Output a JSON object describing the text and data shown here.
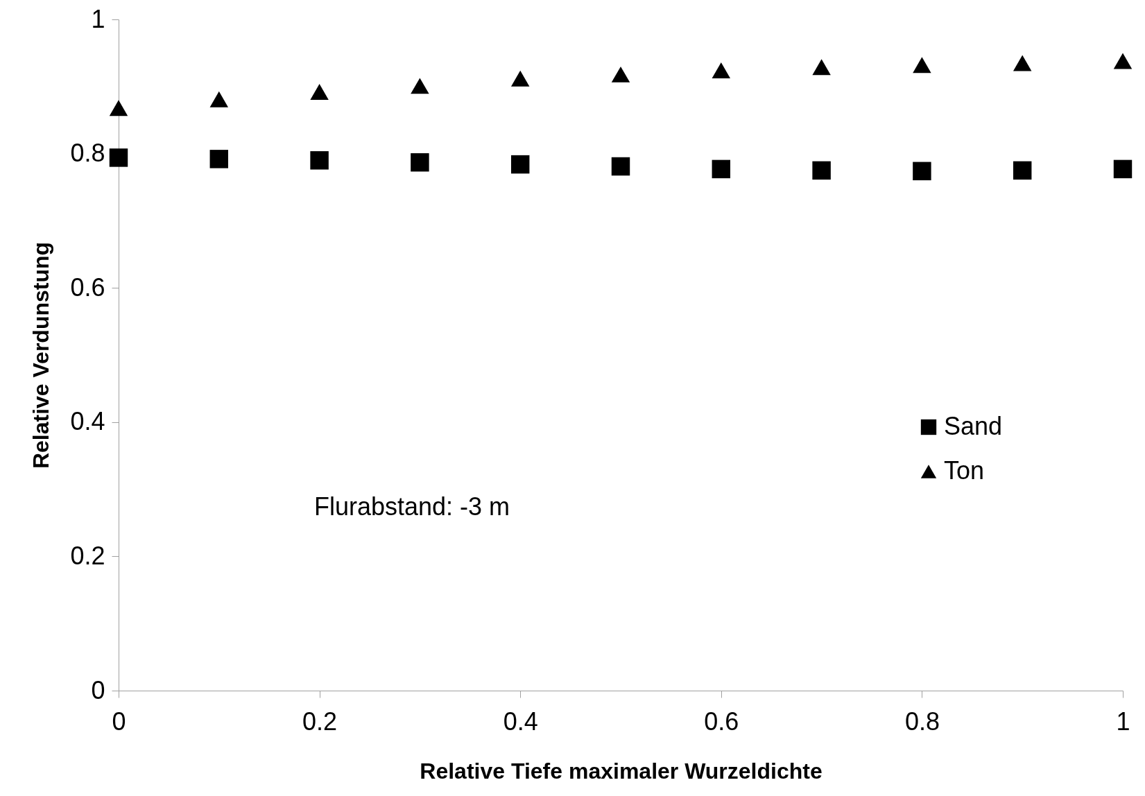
{
  "chart_data": {
    "type": "scatter",
    "xlabel": "Relative Tiefe maximaler Wurzeldichte",
    "ylabel": "Relative Verdunstung",
    "x": [
      0,
      0.1,
      0.2,
      0.3,
      0.4,
      0.5,
      0.6,
      0.7,
      0.8,
      0.9,
      1
    ],
    "series": [
      {
        "name": "Sand",
        "color": "#000000",
        "marker": "square",
        "values": [
          0.794,
          0.792,
          0.79,
          0.787,
          0.784,
          0.781,
          0.777,
          0.775,
          0.774,
          0.775,
          0.777
        ]
      },
      {
        "name": "Ton",
        "color": "#000000",
        "marker": "triangle",
        "values": [
          0.868,
          0.881,
          0.892,
          0.901,
          0.912,
          0.918,
          0.924,
          0.929,
          0.932,
          0.935,
          0.938
        ]
      }
    ],
    "xlim": [
      0,
      1
    ],
    "xticks": [
      0,
      0.2,
      0.4,
      0.6,
      0.8,
      1
    ],
    "ylim": [
      0,
      1
    ],
    "yticks": [
      0,
      0.2,
      0.4,
      0.6,
      0.8,
      1
    ],
    "grid": false,
    "legend": "right",
    "annotations": [
      "Flurabstand: -3 m"
    ]
  }
}
